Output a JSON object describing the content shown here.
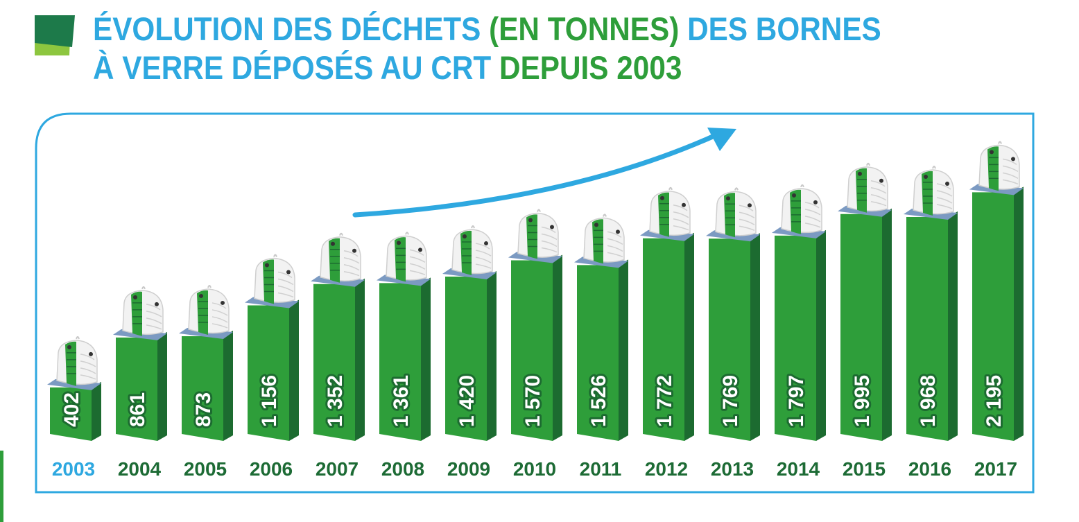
{
  "title": {
    "line1_part1": "ÉVOLUTION DES DÉCHETS ",
    "line1_part2": "(EN TONNES)",
    "line1_part3": " DES BORNES",
    "line2_part1": "À VERRE DÉPOSÉS AU CRT ",
    "line2_part2": "DEPUIS 2003"
  },
  "colors": {
    "title_blue": "#2ea8e0",
    "title_green": "#2e9e3a",
    "bar_front": "#2e9e3a",
    "bar_side": "#1c6b30",
    "bar_top": "#7b9ac2",
    "frame": "#2ea8e0",
    "year_first": "#2ea8e0",
    "year_other": "#1d6b35"
  },
  "chart_data": {
    "type": "bar",
    "title": "ÉVOLUTION DES DÉCHETS (EN TONNES) DES BORNES À VERRE DÉPOSÉS AU CRT DEPUIS 2003",
    "categories": [
      "2003",
      "2004",
      "2005",
      "2006",
      "2007",
      "2008",
      "2009",
      "2010",
      "2011",
      "2012",
      "2013",
      "2014",
      "2015",
      "2016",
      "2017"
    ],
    "values": [
      402,
      861,
      873,
      1156,
      1352,
      1361,
      1420,
      1570,
      1526,
      1772,
      1769,
      1797,
      1995,
      1968,
      2195
    ],
    "labels": [
      "402",
      "861",
      "873",
      "1 156",
      "1 352",
      "1 361",
      "1 420",
      "1 570",
      "1 526",
      "1 772",
      "1 769",
      "1 797",
      "1 995",
      "1 968",
      "2 195"
    ],
    "xlabel": "",
    "ylabel": "",
    "ylim": [
      0,
      2500
    ],
    "grid": false,
    "legend": "none"
  }
}
